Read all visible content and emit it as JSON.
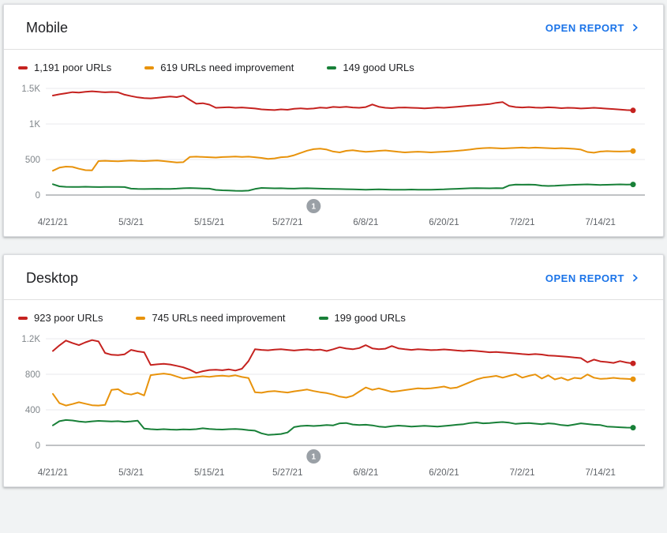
{
  "colors": {
    "poor": "#C5221F",
    "needs_improvement": "#E8930C",
    "good": "#188038",
    "link": "#1A73E8",
    "grid": "#E8EAED",
    "zero_axis": "#80868B",
    "badge": "#9AA0A6"
  },
  "cards": [
    {
      "title": "Mobile",
      "open_report_label": "OPEN REPORT",
      "legend": [
        {
          "series": "poor",
          "text": "1,191 poor URLs"
        },
        {
          "series": "needs_improvement",
          "text": "619 URLs need improvement"
        },
        {
          "series": "good",
          "text": "149 good URLs"
        }
      ]
    },
    {
      "title": "Desktop",
      "open_report_label": "OPEN REPORT",
      "legend": [
        {
          "series": "poor",
          "text": "923 poor URLs"
        },
        {
          "series": "needs_improvement",
          "text": "745 URLs need improvement"
        },
        {
          "series": "good",
          "text": "199 good URLs"
        }
      ]
    }
  ],
  "chart_data": [
    {
      "type": "line",
      "title": "Mobile Core Web Vitals URLs over time",
      "num_points": 90,
      "ylim": [
        0,
        1500
      ],
      "grid": true,
      "y_ticks": [
        {
          "v": 0,
          "label": "0"
        },
        {
          "v": 500,
          "label": "500"
        },
        {
          "v": 1000,
          "label": "1K"
        },
        {
          "v": 1500,
          "label": "1.5K"
        }
      ],
      "x_ticks": [
        {
          "index": 0,
          "label": "4/21/21"
        },
        {
          "index": 12,
          "label": "5/3/21"
        },
        {
          "index": 24,
          "label": "5/15/21"
        },
        {
          "index": 36,
          "label": "5/27/21"
        },
        {
          "index": 48,
          "label": "6/8/21"
        },
        {
          "index": 60,
          "label": "6/20/21"
        },
        {
          "index": 72,
          "label": "7/2/21"
        },
        {
          "index": 84,
          "label": "7/14/21"
        }
      ],
      "annotation": {
        "label": "1",
        "index": 40
      },
      "series": [
        {
          "name": "poor URLs",
          "color_key": "poor",
          "current": 1191,
          "values": [
            1400,
            1418,
            1432,
            1448,
            1442,
            1452,
            1460,
            1452,
            1445,
            1450,
            1445,
            1412,
            1392,
            1375,
            1365,
            1360,
            1368,
            1378,
            1385,
            1378,
            1398,
            1340,
            1285,
            1292,
            1272,
            1228,
            1232,
            1235,
            1228,
            1232,
            1224,
            1218,
            1206,
            1200,
            1196,
            1206,
            1200,
            1214,
            1220,
            1212,
            1218,
            1230,
            1226,
            1240,
            1234,
            1242,
            1232,
            1228,
            1238,
            1275,
            1242,
            1228,
            1222,
            1230,
            1232,
            1228,
            1224,
            1220,
            1226,
            1232,
            1228,
            1234,
            1242,
            1250,
            1258,
            1264,
            1272,
            1280,
            1298,
            1308,
            1252,
            1238,
            1232,
            1238,
            1230,
            1228,
            1234,
            1230,
            1222,
            1228,
            1224,
            1218,
            1222,
            1228,
            1222,
            1216,
            1210,
            1202,
            1196,
            1191
          ]
        },
        {
          "name": "URLs need improvement",
          "color_key": "needs_improvement",
          "current": 619,
          "values": [
            342,
            386,
            400,
            396,
            370,
            350,
            348,
            478,
            482,
            478,
            474,
            480,
            484,
            480,
            478,
            482,
            486,
            478,
            468,
            458,
            462,
            535,
            540,
            536,
            532,
            528,
            534,
            538,
            542,
            536,
            540,
            532,
            522,
            508,
            516,
            532,
            538,
            560,
            592,
            625,
            645,
            652,
            640,
            612,
            600,
            622,
            630,
            618,
            608,
            615,
            622,
            628,
            618,
            608,
            600,
            606,
            610,
            606,
            600,
            606,
            610,
            616,
            622,
            630,
            640,
            652,
            660,
            665,
            660,
            656,
            660,
            665,
            668,
            662,
            668,
            664,
            660,
            656,
            660,
            656,
            650,
            640,
            606,
            596,
            612,
            618,
            615,
            612,
            616,
            619
          ]
        },
        {
          "name": "good URLs",
          "color_key": "good",
          "current": 149,
          "values": [
            152,
            122,
            116,
            113,
            115,
            117,
            114,
            112,
            114,
            115,
            113,
            112,
            90,
            86,
            84,
            86,
            88,
            85,
            87,
            90,
            96,
            99,
            95,
            92,
            90,
            72,
            67,
            64,
            60,
            58,
            62,
            86,
            100,
            97,
            94,
            95,
            92,
            90,
            94,
            96,
            93,
            90,
            88,
            86,
            84,
            82,
            80,
            78,
            76,
            78,
            80,
            78,
            76,
            74,
            76,
            78,
            76,
            74,
            76,
            78,
            80,
            84,
            88,
            92,
            96,
            98,
            96,
            94,
            98,
            96,
            135,
            148,
            145,
            148,
            144,
            132,
            128,
            130,
            136,
            140,
            144,
            148,
            150,
            146,
            142,
            144,
            147,
            150,
            148,
            149
          ]
        }
      ]
    },
    {
      "type": "line",
      "title": "Desktop Core Web Vitals URLs over time",
      "num_points": 90,
      "ylim": [
        0,
        1200
      ],
      "grid": true,
      "y_ticks": [
        {
          "v": 0,
          "label": "0"
        },
        {
          "v": 400,
          "label": "400"
        },
        {
          "v": 800,
          "label": "800"
        },
        {
          "v": 1200,
          "label": "1.2K"
        }
      ],
      "x_ticks": [
        {
          "index": 0,
          "label": "4/21/21"
        },
        {
          "index": 12,
          "label": "5/3/21"
        },
        {
          "index": 24,
          "label": "5/15/21"
        },
        {
          "index": 36,
          "label": "5/27/21"
        },
        {
          "index": 48,
          "label": "6/8/21"
        },
        {
          "index": 60,
          "label": "6/20/21"
        },
        {
          "index": 72,
          "label": "7/2/21"
        },
        {
          "index": 84,
          "label": "7/14/21"
        }
      ],
      "annotation": {
        "label": "1",
        "index": 40
      },
      "series": [
        {
          "name": "poor URLs",
          "color_key": "poor",
          "current": 923,
          "values": [
            1062,
            1125,
            1180,
            1152,
            1128,
            1160,
            1185,
            1170,
            1040,
            1020,
            1015,
            1025,
            1075,
            1058,
            1048,
            905,
            912,
            918,
            910,
            895,
            878,
            852,
            815,
            835,
            848,
            852,
            845,
            855,
            842,
            862,
            948,
            1082,
            1075,
            1070,
            1078,
            1082,
            1075,
            1068,
            1075,
            1080,
            1072,
            1078,
            1062,
            1082,
            1105,
            1090,
            1082,
            1095,
            1128,
            1092,
            1082,
            1088,
            1118,
            1092,
            1082,
            1075,
            1082,
            1078,
            1072,
            1075,
            1080,
            1075,
            1068,
            1062,
            1068,
            1062,
            1055,
            1048,
            1052,
            1045,
            1040,
            1035,
            1028,
            1022,
            1028,
            1022,
            1012,
            1008,
            1002,
            996,
            988,
            982,
            935,
            965,
            945,
            938,
            928,
            948,
            932,
            923
          ]
        },
        {
          "name": "URLs need improvement",
          "color_key": "needs_improvement",
          "current": 745,
          "values": [
            580,
            475,
            448,
            465,
            485,
            468,
            452,
            448,
            455,
            625,
            632,
            585,
            572,
            592,
            562,
            790,
            800,
            808,
            798,
            775,
            752,
            762,
            770,
            778,
            772,
            780,
            785,
            778,
            788,
            770,
            758,
            598,
            592,
            605,
            612,
            602,
            595,
            608,
            618,
            628,
            612,
            598,
            588,
            572,
            548,
            538,
            558,
            605,
            652,
            625,
            642,
            622,
            602,
            612,
            622,
            632,
            642,
            638,
            642,
            652,
            662,
            642,
            652,
            682,
            712,
            742,
            762,
            772,
            782,
            762,
            782,
            802,
            762,
            782,
            798,
            752,
            788,
            742,
            762,
            732,
            760,
            752,
            798,
            762,
            748,
            752,
            760,
            752,
            748,
            745
          ]
        },
        {
          "name": "good URLs",
          "color_key": "good",
          "current": 199,
          "values": [
            225,
            272,
            285,
            280,
            268,
            262,
            270,
            276,
            272,
            268,
            272,
            265,
            270,
            278,
            188,
            182,
            178,
            182,
            178,
            175,
            180,
            178,
            182,
            192,
            185,
            180,
            178,
            182,
            185,
            180,
            172,
            165,
            135,
            118,
            122,
            128,
            145,
            205,
            218,
            222,
            218,
            222,
            228,
            225,
            248,
            252,
            235,
            228,
            232,
            225,
            212,
            205,
            215,
            222,
            218,
            212,
            215,
            220,
            216,
            212,
            218,
            225,
            232,
            238,
            252,
            258,
            248,
            252,
            258,
            262,
            255,
            242,
            248,
            252,
            244,
            238,
            248,
            242,
            228,
            222,
            235,
            248,
            240,
            232,
            228,
            212,
            208,
            204,
            200,
            199
          ]
        }
      ]
    }
  ]
}
